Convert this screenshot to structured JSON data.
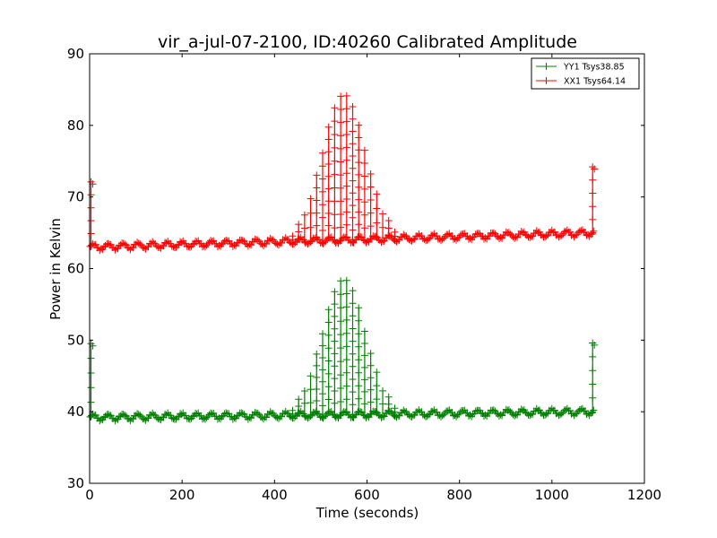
{
  "chart_data": {
    "type": "line",
    "title": "vir_a-jul-07-2100, ID:40260 Calibrated Amplitude",
    "xlabel": "Time (seconds)",
    "ylabel": "Power in Kelvin",
    "xlim": [
      0,
      1200
    ],
    "ylim": [
      30,
      90
    ],
    "xticks": [
      0,
      200,
      400,
      600,
      800,
      1000,
      1200
    ],
    "yticks": [
      30,
      40,
      50,
      60,
      70,
      80,
      90
    ],
    "xtick_labels": [
      "0",
      "200",
      "400",
      "600",
      "800",
      "1000",
      "1200"
    ],
    "ytick_labels": [
      "30",
      "40",
      "50",
      "60",
      "70",
      "80",
      "90"
    ],
    "grid": false,
    "legend_position": "top-right",
    "series": [
      {
        "name": "YY1 Tsys38.85",
        "color": "#008000",
        "marker": "plus",
        "t_start": 0,
        "t_end": 1090,
        "baseline_start": 39.2,
        "baseline_end": 40.0,
        "ripple_amplitude": 0.4,
        "ripple_period_s": 32,
        "spike_interval_s": 13,
        "spike_center_s": 550,
        "spike_peak": 58.5,
        "spike_width_s": 65,
        "spike_range_s": [
          400,
          690
        ],
        "edge_spikes": [
          [
            0,
            49.5
          ],
          [
            1088,
            49.6
          ]
        ]
      },
      {
        "name": "XX1 Tsys64.14",
        "color": "#ff0000",
        "marker": "plus",
        "t_start": 0,
        "t_end": 1090,
        "baseline_start": 63.0,
        "baseline_end": 65.0,
        "ripple_amplitude": 0.4,
        "ripple_period_s": 32,
        "spike_interval_s": 13,
        "spike_center_s": 550,
        "spike_peak": 84.3,
        "spike_width_s": 65,
        "spike_range_s": [
          400,
          690
        ],
        "edge_spikes": [
          [
            0,
            72.1
          ],
          [
            1088,
            74.2
          ]
        ]
      }
    ]
  }
}
